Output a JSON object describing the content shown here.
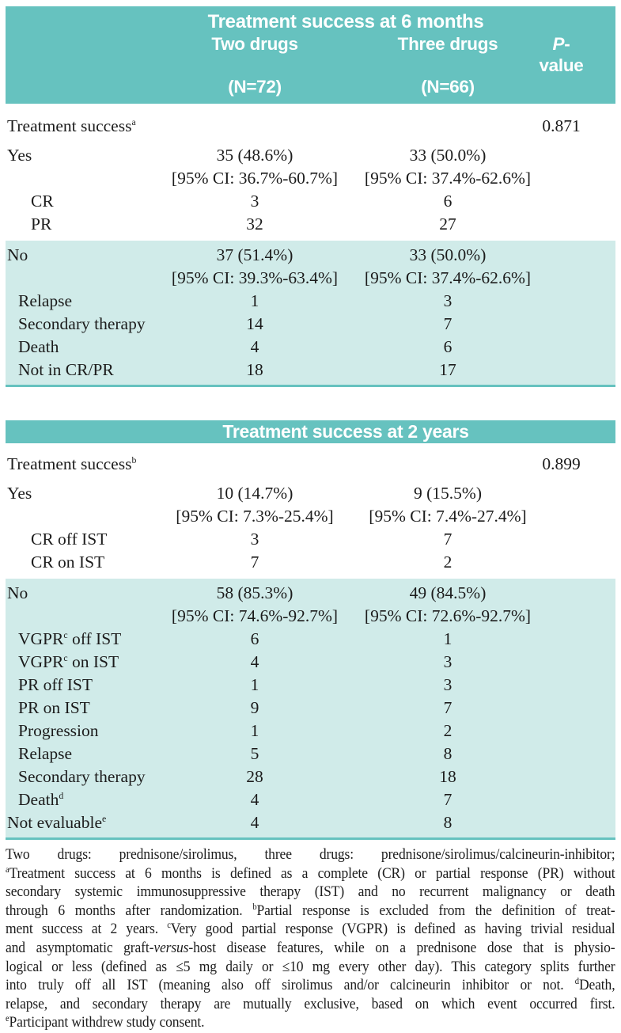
{
  "colors": {
    "header_teal": "#66c2bf",
    "shaded_band_teal": "#d0ebe9",
    "text": "#1c1c1c"
  },
  "t1": {
    "title": "Treatment success at 6 months",
    "col_two_l1": "Two drugs",
    "col_two_l2": "(N=72)",
    "col_three_l1": "Three drugs",
    "col_three_l2": "(N=66)",
    "col_p_italic": "P",
    "col_p_rest": "-value",
    "rows": [
      {
        "label": "Treatment success",
        "sup": "a",
        "p": "0.871"
      },
      {
        "label": "Yes",
        "two": "35 (48.6%)",
        "two_ci": "[95% CI: 36.7%-60.7%]",
        "three": "33 (50.0%)",
        "three_ci": "[95% CI: 37.4%-62.6%]"
      },
      {
        "label": "CR",
        "two": "3",
        "three": "6"
      },
      {
        "label": "PR",
        "two": "32",
        "three": "27"
      },
      {
        "label": "No",
        "two": "37 (51.4%)",
        "two_ci": "[95% CI: 39.3%-63.4%]",
        "three": "33 (50.0%)",
        "three_ci": "[95% CI: 37.4%-62.6%]"
      },
      {
        "label": "Relapse",
        "two": "1",
        "three": "3"
      },
      {
        "label": "Secondary therapy",
        "two": "14",
        "three": "7"
      },
      {
        "label": "Death",
        "two": "4",
        "three": "6"
      },
      {
        "label": "Not in CR/PR",
        "two": "18",
        "three": "17"
      }
    ]
  },
  "t2": {
    "title": "Treatment success at 2 years",
    "rows": [
      {
        "label": "Treatment success",
        "sup": "b",
        "p": "0.899"
      },
      {
        "label": "Yes",
        "two": "10 (14.7%)",
        "two_ci": "[95% CI: 7.3%-25.4%]",
        "three": "9 (15.5%)",
        "three_ci": "[95% CI: 7.4%-27.4%]"
      },
      {
        "label": "CR off IST",
        "two": "3",
        "three": "7"
      },
      {
        "label": "CR on IST",
        "two": "7",
        "three": "2"
      },
      {
        "label": "No",
        "two": "58 (85.3%)",
        "two_ci": "[95% CI: 74.6%-92.7%]",
        "three": "49 (84.5%)",
        "three_ci": "[95% CI: 72.6%-92.7%]"
      },
      {
        "label": "VGPR",
        "sup": "c",
        "post": " off IST",
        "two": "6",
        "three": "1"
      },
      {
        "label": "VGPR",
        "sup": "c",
        "post": " on IST",
        "two": "4",
        "three": "3"
      },
      {
        "label": "PR off IST",
        "two": "1",
        "three": "3"
      },
      {
        "label": "PR on IST",
        "two": "9",
        "three": "7"
      },
      {
        "label": "Progression",
        "two": "1",
        "three": "2"
      },
      {
        "label": "Relapse",
        "two": "5",
        "three": "8"
      },
      {
        "label": "Secondary therapy",
        "two": "28",
        "three": "18"
      },
      {
        "label": "Death",
        "sup": "d",
        "two": "4",
        "three": "7"
      },
      {
        "label": "Not evaluable",
        "sup": "e",
        "two": "4",
        "three": "8"
      }
    ]
  },
  "footnote": {
    "lines": [
      {
        "a": "Two drugs: prednisone/sirolimus, three drugs: prednisone/sirolimus/calcineurin-inhibitor;"
      },
      {
        "sup": "a",
        "b": "Treatment success at 6 months is defined as a complete (CR) or partial response (PR) without"
      },
      {
        "a": "secondary systemic immunosuppressive therapy (IST) and no recurrent malignancy or death"
      },
      {
        "a": "through 6 months after randomization. ",
        "sup": "b",
        "b": "Partial response is excluded from the definition of treat-"
      },
      {
        "a": "ment success at 2 years. ",
        "sup": "c",
        "b": "Very good partial response (VGPR) is defined as having trivial residual"
      },
      {
        "a": "and asymptomatic graft-",
        "it": "versus",
        "c": "-host disease features, while on a prednisone dose that is physio-"
      },
      {
        "a": "logical or less (defined as ≤5 mg daily or ≤10 mg every other day). This category splits further"
      },
      {
        "a": "into truly off all IST (meaning also off sirolimus and/or calcineurin inhibitor or not. ",
        "sup": "d",
        "b": "Death,"
      },
      {
        "a": "relapse, and secondary therapy are mutually exclusive, based on which event occurred first."
      },
      {
        "sup": "e",
        "b": "Participant withdrew study consent."
      }
    ]
  }
}
